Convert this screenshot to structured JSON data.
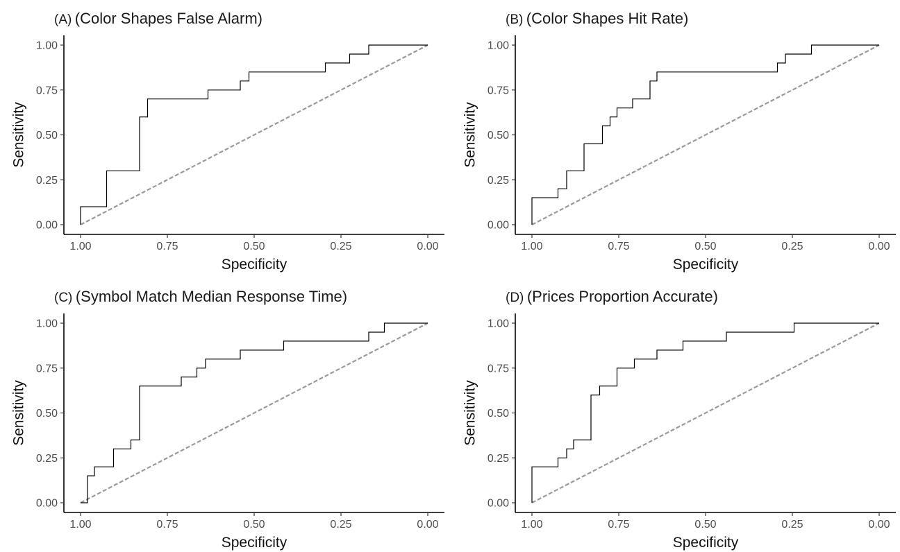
{
  "chart_data": [
    {
      "type": "line",
      "panel_label": "(A)",
      "title": "(Color Shapes False Alarm)",
      "xlabel": "Specificity",
      "ylabel": "Sensitivity",
      "x_reversed": true,
      "xlim": [
        1.0,
        0.0
      ],
      "ylim": [
        0.0,
        1.0
      ],
      "xticks": [
        "1.00",
        "0.75",
        "0.50",
        "0.25",
        "0.00"
      ],
      "yticks": [
        "0.00",
        "0.25",
        "0.50",
        "0.75",
        "1.00"
      ],
      "grid": false,
      "reference_color": "#999999",
      "curve_color": "#000000",
      "roc_points": [
        [
          1.0,
          0.0
        ],
        [
          1.0,
          0.1
        ],
        [
          0.925,
          0.1
        ],
        [
          0.925,
          0.3
        ],
        [
          0.83,
          0.3
        ],
        [
          0.83,
          0.6
        ],
        [
          0.807,
          0.6
        ],
        [
          0.807,
          0.7
        ],
        [
          0.633,
          0.7
        ],
        [
          0.633,
          0.75
        ],
        [
          0.54,
          0.75
        ],
        [
          0.54,
          0.8
        ],
        [
          0.515,
          0.8
        ],
        [
          0.515,
          0.85
        ],
        [
          0.295,
          0.85
        ],
        [
          0.295,
          0.9
        ],
        [
          0.225,
          0.9
        ],
        [
          0.225,
          0.95
        ],
        [
          0.17,
          0.95
        ],
        [
          0.17,
          1.0
        ],
        [
          0.0,
          1.0
        ]
      ]
    },
    {
      "type": "line",
      "panel_label": "(B)",
      "title": "(Color Shapes Hit Rate)",
      "xlabel": "Specificity",
      "ylabel": "Sensitivity",
      "x_reversed": true,
      "xlim": [
        1.0,
        0.0
      ],
      "ylim": [
        0.0,
        1.0
      ],
      "xticks": [
        "1.00",
        "0.75",
        "0.50",
        "0.25",
        "0.00"
      ],
      "yticks": [
        "0.00",
        "0.25",
        "0.50",
        "0.75",
        "1.00"
      ],
      "grid": false,
      "reference_color": "#999999",
      "curve_color": "#000000",
      "roc_points": [
        [
          1.0,
          0.0
        ],
        [
          1.0,
          0.15
        ],
        [
          0.925,
          0.15
        ],
        [
          0.925,
          0.2
        ],
        [
          0.9,
          0.2
        ],
        [
          0.9,
          0.3
        ],
        [
          0.85,
          0.3
        ],
        [
          0.85,
          0.45
        ],
        [
          0.797,
          0.45
        ],
        [
          0.797,
          0.55
        ],
        [
          0.775,
          0.55
        ],
        [
          0.775,
          0.6
        ],
        [
          0.755,
          0.6
        ],
        [
          0.755,
          0.65
        ],
        [
          0.71,
          0.65
        ],
        [
          0.71,
          0.7
        ],
        [
          0.66,
          0.7
        ],
        [
          0.66,
          0.8
        ],
        [
          0.64,
          0.8
        ],
        [
          0.64,
          0.85
        ],
        [
          0.293,
          0.85
        ],
        [
          0.293,
          0.9
        ],
        [
          0.27,
          0.9
        ],
        [
          0.27,
          0.95
        ],
        [
          0.195,
          0.95
        ],
        [
          0.195,
          1.0
        ],
        [
          0.0,
          1.0
        ]
      ]
    },
    {
      "type": "line",
      "panel_label": "(C)",
      "title": "(Symbol Match Median Response Time)",
      "xlabel": "Specificity",
      "ylabel": "Sensitivity",
      "x_reversed": true,
      "xlim": [
        1.0,
        0.0
      ],
      "ylim": [
        0.0,
        1.0
      ],
      "xticks": [
        "1.00",
        "0.75",
        "0.50",
        "0.25",
        "0.00"
      ],
      "yticks": [
        "0.00",
        "0.25",
        "0.50",
        "0.75",
        "1.00"
      ],
      "grid": false,
      "reference_color": "#999999",
      "curve_color": "#000000",
      "roc_points": [
        [
          1.0,
          0.0
        ],
        [
          0.98,
          0.0
        ],
        [
          0.98,
          0.15
        ],
        [
          0.96,
          0.15
        ],
        [
          0.96,
          0.2
        ],
        [
          0.905,
          0.2
        ],
        [
          0.905,
          0.3
        ],
        [
          0.855,
          0.3
        ],
        [
          0.855,
          0.35
        ],
        [
          0.83,
          0.35
        ],
        [
          0.83,
          0.65
        ],
        [
          0.71,
          0.65
        ],
        [
          0.71,
          0.7
        ],
        [
          0.665,
          0.7
        ],
        [
          0.665,
          0.75
        ],
        [
          0.64,
          0.75
        ],
        [
          0.64,
          0.8
        ],
        [
          0.54,
          0.8
        ],
        [
          0.54,
          0.85
        ],
        [
          0.415,
          0.85
        ],
        [
          0.415,
          0.9
        ],
        [
          0.17,
          0.9
        ],
        [
          0.17,
          0.95
        ],
        [
          0.125,
          0.95
        ],
        [
          0.125,
          1.0
        ],
        [
          0.0,
          1.0
        ]
      ]
    },
    {
      "type": "line",
      "panel_label": "(D)",
      "title": "(Prices Proportion Accurate)",
      "xlabel": "Specificity",
      "ylabel": "Sensitivity",
      "x_reversed": true,
      "xlim": [
        1.0,
        0.0
      ],
      "ylim": [
        0.0,
        1.0
      ],
      "xticks": [
        "1.00",
        "0.75",
        "0.50",
        "0.25",
        "0.00"
      ],
      "yticks": [
        "0.00",
        "0.25",
        "0.50",
        "0.75",
        "1.00"
      ],
      "grid": false,
      "reference_color": "#999999",
      "curve_color": "#000000",
      "roc_points": [
        [
          1.0,
          0.0
        ],
        [
          1.0,
          0.2
        ],
        [
          0.925,
          0.2
        ],
        [
          0.925,
          0.25
        ],
        [
          0.9,
          0.25
        ],
        [
          0.9,
          0.3
        ],
        [
          0.88,
          0.3
        ],
        [
          0.88,
          0.35
        ],
        [
          0.83,
          0.35
        ],
        [
          0.83,
          0.6
        ],
        [
          0.805,
          0.6
        ],
        [
          0.805,
          0.65
        ],
        [
          0.755,
          0.65
        ],
        [
          0.755,
          0.75
        ],
        [
          0.705,
          0.75
        ],
        [
          0.705,
          0.8
        ],
        [
          0.64,
          0.8
        ],
        [
          0.64,
          0.85
        ],
        [
          0.565,
          0.85
        ],
        [
          0.565,
          0.9
        ],
        [
          0.44,
          0.9
        ],
        [
          0.44,
          0.95
        ],
        [
          0.245,
          0.95
        ],
        [
          0.245,
          1.0
        ],
        [
          0.0,
          1.0
        ]
      ]
    }
  ]
}
